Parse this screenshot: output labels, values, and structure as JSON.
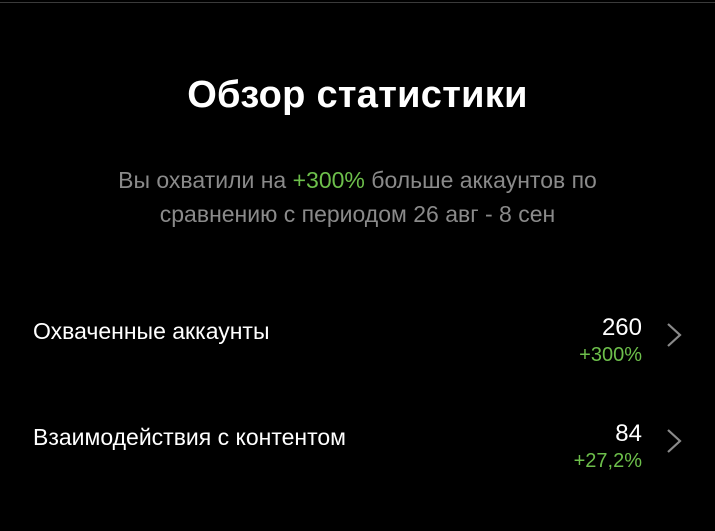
{
  "header": {
    "title": "Обзор статистики"
  },
  "summary": {
    "before": "Вы охватили на ",
    "highlight": "+300%",
    "after": " больше аккаунтов по сравнению с периодом 26 авг - 8 сен"
  },
  "colors": {
    "positive": "#6dbf4b",
    "muted": "#8a8a8a",
    "background": "#000000"
  },
  "metrics": [
    {
      "label": "Охваченные аккаунты",
      "value": "260",
      "delta": "+300%",
      "icon": "chevron-right-icon"
    },
    {
      "label": "Взаимодействия с контентом",
      "value": "84",
      "delta": "+27,2%",
      "icon": "chevron-right-icon"
    }
  ]
}
